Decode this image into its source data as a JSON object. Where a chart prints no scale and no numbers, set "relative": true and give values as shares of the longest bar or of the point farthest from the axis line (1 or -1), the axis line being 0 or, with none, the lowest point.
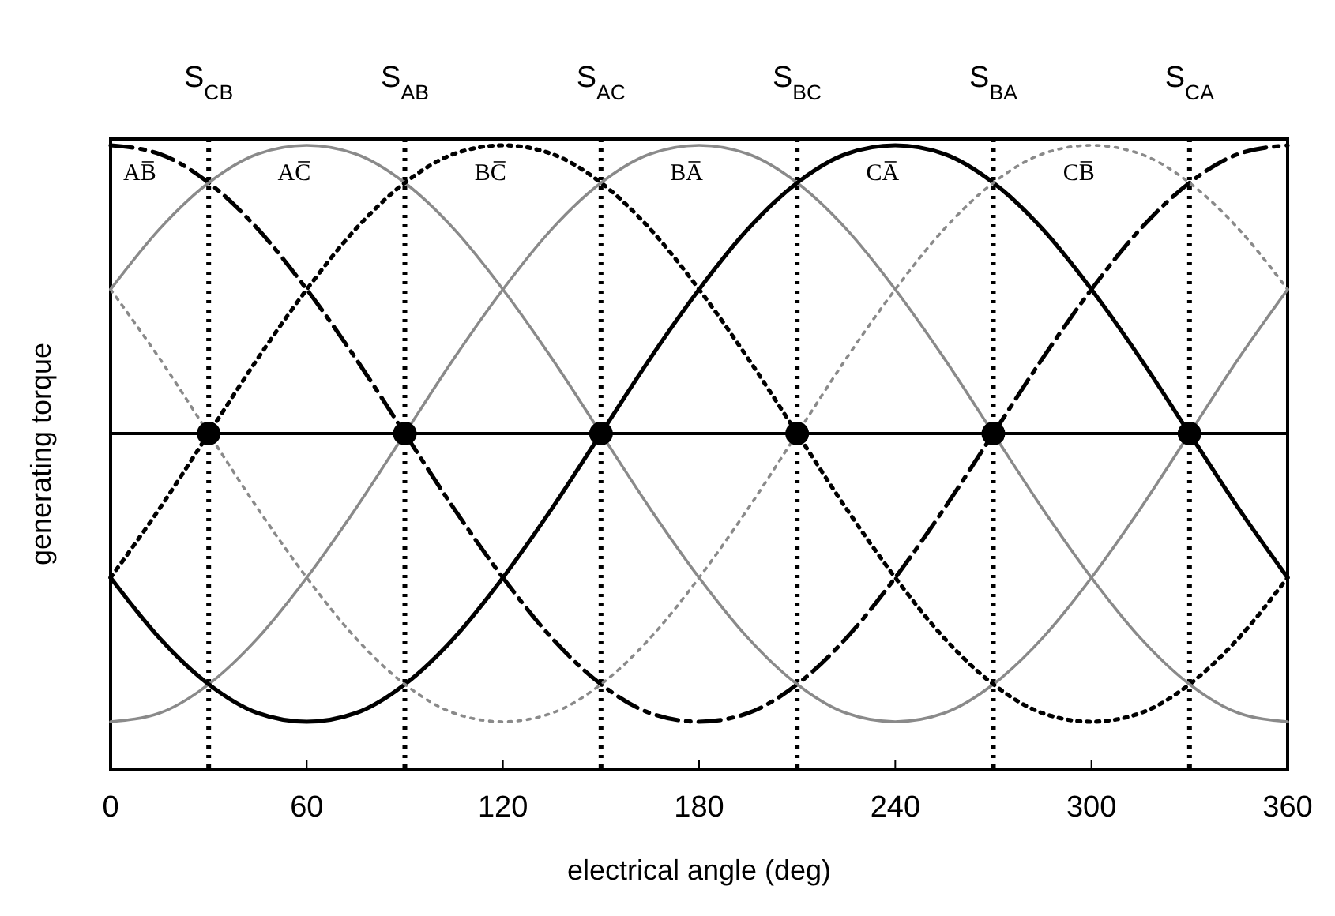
{
  "chart_data": {
    "type": "line",
    "relative": true,
    "xlabel": "electrical angle (deg)",
    "ylabel": "generating torque",
    "xlim": [
      0,
      360
    ],
    "xticks": [
      0,
      60,
      120,
      180,
      240,
      300,
      360
    ],
    "grid": false,
    "marker": "none",
    "x": [
      0,
      15,
      30,
      45,
      60,
      75,
      90,
      105,
      120,
      135,
      150,
      165,
      180,
      195,
      210,
      225,
      240,
      255,
      270,
      285,
      300,
      315,
      330,
      345,
      360
    ],
    "series": [
      {
        "name": "AB̅",
        "color": "#000000",
        "line_style": "dashed",
        "values": [
          1,
          0.97,
          0.87,
          0.71,
          0.5,
          0.26,
          0,
          -0.26,
          -0.5,
          -0.71,
          -0.87,
          -0.97,
          -1,
          -0.97,
          -0.87,
          -0.71,
          -0.5,
          -0.26,
          0,
          0.26,
          0.5,
          0.71,
          0.87,
          0.97,
          1
        ]
      },
      {
        "name": "AC̅",
        "color": "#8a8a8a",
        "line_style": "solid",
        "values": [
          0.5,
          0.71,
          0.87,
          0.97,
          1,
          0.97,
          0.87,
          0.71,
          0.5,
          0.26,
          0,
          -0.26,
          -0.5,
          -0.71,
          -0.87,
          -0.97,
          -1,
          -0.97,
          -0.87,
          -0.71,
          -0.5,
          -0.26,
          0,
          0.26,
          0.5
        ]
      },
      {
        "name": "BC̅",
        "color": "#000000",
        "line_style": "dotted",
        "values": [
          -0.5,
          -0.26,
          0,
          0.26,
          0.5,
          0.71,
          0.87,
          0.97,
          1,
          0.97,
          0.87,
          0.71,
          0.5,
          0.26,
          0,
          -0.26,
          -0.5,
          -0.71,
          -0.87,
          -0.97,
          -1,
          -0.97,
          -0.87,
          -0.71,
          -0.5
        ]
      },
      {
        "name": "BA̅",
        "color": "#8a8a8a",
        "line_style": "solid",
        "values": [
          -1,
          -0.97,
          -0.87,
          -0.71,
          -0.5,
          -0.26,
          0,
          0.26,
          0.5,
          0.71,
          0.87,
          0.97,
          1,
          0.97,
          0.87,
          0.71,
          0.5,
          0.26,
          0,
          -0.26,
          -0.5,
          -0.71,
          -0.87,
          -0.97,
          -1
        ]
      },
      {
        "name": "CA̅",
        "color": "#000000",
        "line_style": "solid",
        "values": [
          -0.5,
          -0.71,
          -0.87,
          -0.97,
          -1,
          -0.97,
          -0.87,
          -0.71,
          -0.5,
          -0.26,
          0,
          0.26,
          0.5,
          0.71,
          0.87,
          0.97,
          1,
          0.97,
          0.87,
          0.71,
          0.5,
          0.26,
          0,
          -0.26,
          -0.5
        ]
      },
      {
        "name": "CB̅",
        "color": "#8a8a8a",
        "line_style": "dotted",
        "values": [
          0.5,
          0.26,
          0,
          -0.26,
          -0.5,
          -0.71,
          -0.87,
          -0.97,
          -1,
          -0.97,
          -0.87,
          -0.71,
          -0.5,
          -0.26,
          0,
          0.26,
          0.5,
          0.71,
          0.87,
          0.97,
          1,
          0.97,
          0.87,
          0.71,
          0.5
        ]
      },
      {
        "type": "scatter",
        "marker": "circle",
        "color": "#000000",
        "x": [
          30,
          90,
          150,
          210,
          270,
          330
        ],
        "values": [
          0,
          0,
          0,
          0,
          0,
          0
        ]
      }
    ],
    "ref_lines": [
      {
        "axis": "x",
        "value": 30,
        "label": "S$_{CB}$",
        "line_style": "dotted",
        "color": "#000000"
      },
      {
        "axis": "x",
        "value": 90,
        "label": "S$_{AB}$",
        "line_style": "dotted",
        "color": "#000000"
      },
      {
        "axis": "x",
        "value": 150,
        "label": "S$_{AC}$",
        "line_style": "dotted",
        "color": "#000000"
      },
      {
        "axis": "x",
        "value": 210,
        "label": "S$_{BC}$",
        "line_style": "dotted",
        "color": "#000000"
      },
      {
        "axis": "x",
        "value": 270,
        "label": "S$_{BA}$",
        "line_style": "dotted",
        "color": "#000000"
      },
      {
        "axis": "x",
        "value": 330,
        "label": "S$_{CA}$",
        "line_style": "dotted",
        "color": "#000000"
      }
    ]
  }
}
